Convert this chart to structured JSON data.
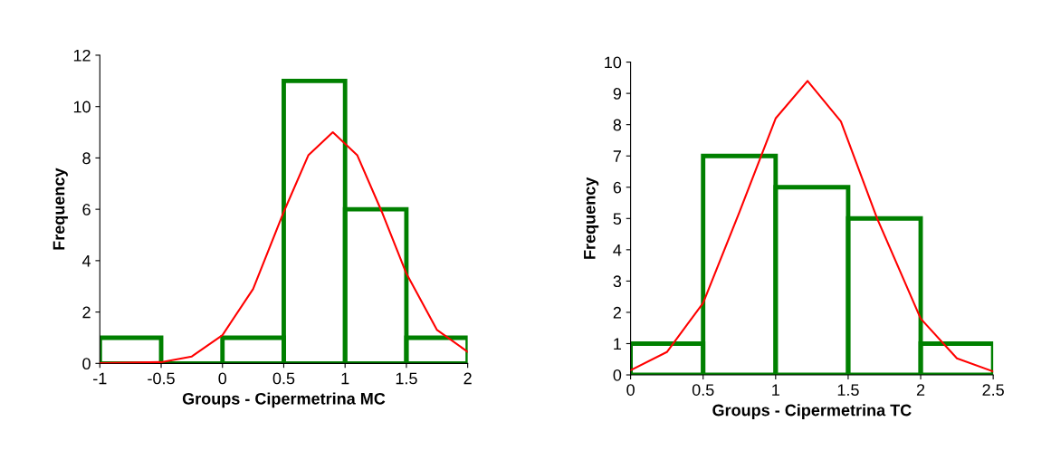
{
  "chart_data": [
    {
      "type": "histogram",
      "xlabel": "Groups - Cipermetrina MC",
      "ylabel": "Frequency",
      "bins": [
        -1,
        -0.5,
        0,
        0.5,
        1,
        1.5,
        2
      ],
      "values": [
        1,
        0,
        1,
        11,
        6,
        1
      ],
      "color": "#008000",
      "xlim": [
        -1,
        2
      ],
      "xticks": [
        -1,
        -0.5,
        0,
        0.5,
        1,
        1.5,
        2
      ],
      "ylim": [
        0,
        12
      ],
      "yticks": [
        0,
        2,
        4,
        6,
        8,
        10,
        12
      ],
      "grid": false,
      "legend": false,
      "series": [
        {
          "type": "line",
          "color": "#ff0000",
          "x": [
            -1,
            -0.5,
            -0.25,
            0,
            0.25,
            0.5,
            0.7,
            0.9,
            1.1,
            1.3,
            1.5,
            1.75,
            2
          ],
          "values": [
            0.01,
            0.05,
            0.27,
            1.1,
            2.9,
            5.9,
            8.1,
            9,
            8.1,
            5.9,
            3.5,
            1.3,
            0.45
          ]
        }
      ]
    },
    {
      "type": "histogram",
      "xlabel": "Groups - Cipermetrina TC",
      "ylabel": "Frequency",
      "bins": [
        0,
        0.5,
        1,
        1.5,
        2,
        2.5
      ],
      "values": [
        1,
        7,
        6,
        5,
        1
      ],
      "color": "#008000",
      "xlim": [
        0,
        2.5
      ],
      "xticks": [
        0,
        0.5,
        1,
        1.5,
        2,
        2.5
      ],
      "ylim": [
        0,
        10
      ],
      "yticks": [
        0,
        1,
        2,
        3,
        4,
        5,
        6,
        7,
        8,
        9,
        10
      ],
      "grid": false,
      "legend": false,
      "series": [
        {
          "type": "line",
          "color": "#ff0000",
          "x": [
            0,
            0.25,
            0.5,
            0.75,
            1,
            1.22,
            1.45,
            1.7,
            2,
            2.25,
            2.5
          ],
          "values": [
            0.15,
            0.73,
            2.3,
            5.2,
            8.2,
            9.4,
            8.1,
            5.0,
            1.8,
            0.53,
            0.11
          ]
        }
      ]
    }
  ]
}
